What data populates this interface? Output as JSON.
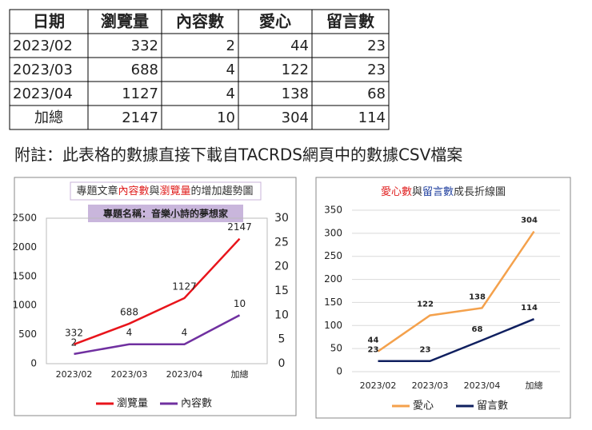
{
  "table": {
    "header": [
      "日期",
      "瀏覽量",
      "內容數",
      "愛心",
      "留言數"
    ],
    "rows": [
      [
        "2023/02",
        332,
        2,
        44,
        23
      ],
      [
        "2023/03",
        688,
        4,
        122,
        23
      ],
      [
        "2023/04",
        1127,
        4,
        138,
        68
      ],
      [
        "加總",
        2147,
        10,
        304,
        114
      ]
    ]
  },
  "note": "附註：此表格的數據直接下載自TACRDS網頁中的數據CSV檔案",
  "chart_data": [
    {
      "type": "line",
      "title": [
        "專題文章",
        "內容數",
        "與",
        "瀏覽量",
        "的增加趨勢圖"
      ],
      "title_colors": [
        "#333333",
        "#e02020",
        "#333333",
        "#e02020",
        "#333333"
      ],
      "subtitle": "專題名稱：音樂小詩的夢想家",
      "categories": [
        "2023/02",
        "2023/03",
        "2023/04",
        "加總"
      ],
      "series": [
        {
          "name": "瀏覽量",
          "color": "#e8141b",
          "label_color": "#222222",
          "values": [
            332,
            688,
            1127,
            2147
          ]
        },
        {
          "name": "內容數",
          "color": "#7030a0",
          "label_color": "#222222",
          "axis": "y2",
          "values": [
            2,
            4,
            4,
            10
          ]
        }
      ],
      "ylim": [
        0,
        2500
      ],
      "yticks": [
        0,
        500,
        1000,
        1500,
        2000,
        2500
      ],
      "y2lim": [
        0,
        30
      ],
      "y2ticks": [
        0,
        5,
        10,
        15,
        20,
        25,
        30
      ],
      "grid": false,
      "legend": "bottom"
    },
    {
      "type": "line",
      "title": [
        "愛心數",
        "與",
        "留言數",
        "成長折線圖"
      ],
      "title_colors": [
        "#e02020",
        "#333333",
        "#1f3f9f",
        "#333333"
      ],
      "categories": [
        "2023/02",
        "2023/03",
        "2023/04",
        "加總"
      ],
      "series": [
        {
          "name": "愛心",
          "color": "#f4a14c",
          "label_color": "#e02020",
          "values": [
            44,
            122,
            138,
            304
          ]
        },
        {
          "name": "留言數",
          "color": "#0f1f5f",
          "label_color": "#222222",
          "values": [
            23,
            23,
            68,
            114
          ]
        }
      ],
      "ylim": [
        0,
        350
      ],
      "yticks": [
        0,
        50,
        100,
        150,
        200,
        250,
        300,
        350
      ],
      "grid": true,
      "legend": "bottom"
    }
  ]
}
